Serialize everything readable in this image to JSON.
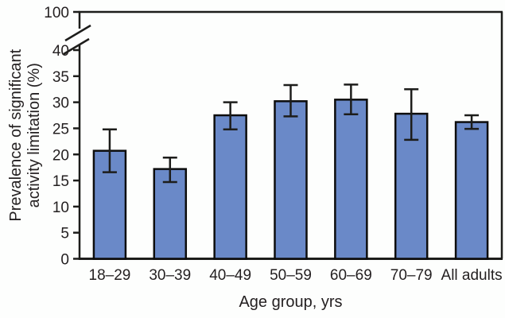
{
  "chart_data": {
    "type": "bar",
    "title": "",
    "categories": [
      "18–29",
      "30–39",
      "40–49",
      "50–59",
      "60–69",
      "70–79",
      "All adults"
    ],
    "values": [
      20.7,
      17.2,
      27.5,
      30.2,
      30.5,
      27.8,
      26.2
    ],
    "error_low": [
      16.6,
      14.7,
      24.8,
      27.3,
      27.7,
      22.8,
      24.9
    ],
    "error_high": [
      24.8,
      19.4,
      30.0,
      33.3,
      33.4,
      32.5,
      27.5
    ],
    "xlabel": "Age group, yrs",
    "ylabel_lines": [
      "Prevalence of significant",
      "activity limitation (%)"
    ],
    "y_ticks": [
      0,
      5,
      10,
      15,
      20,
      25,
      30,
      35,
      40
    ],
    "y_break_top_label": "100",
    "ylim": [
      0,
      40
    ],
    "axis_break": true,
    "grid": false,
    "legend": false,
    "bar_fill": "#6a89c8",
    "bar_stroke": "#0d0d0d",
    "axis_color": "#1d1d1b",
    "error_color": "#0d0d0d"
  }
}
